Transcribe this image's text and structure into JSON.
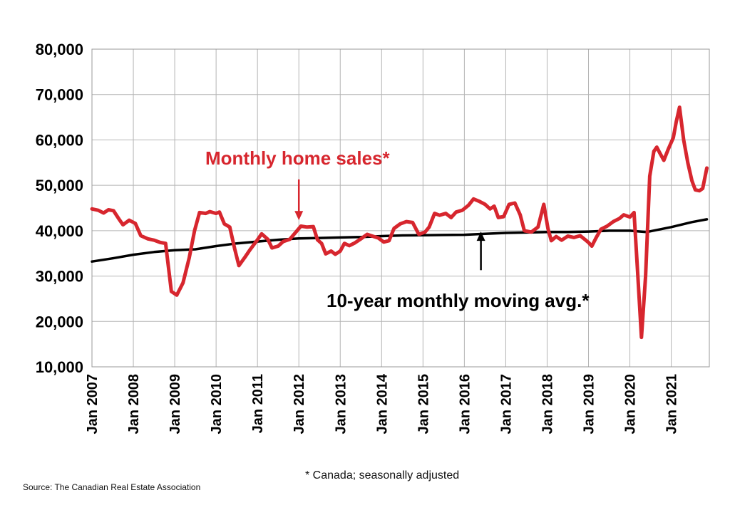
{
  "chart_data": {
    "type": "line",
    "title": "",
    "xlabel": "",
    "ylabel": "",
    "ylim": [
      10000,
      80000
    ],
    "yticks": [
      10000,
      20000,
      30000,
      40000,
      50000,
      60000,
      70000,
      80000
    ],
    "ytick_labels": [
      "10,000",
      "20,000",
      "30,000",
      "40,000",
      "50,000",
      "60,000",
      "70,000",
      "80,000"
    ],
    "xlim": [
      2007.0,
      2021.92
    ],
    "xticks": [
      2007,
      2008,
      2009,
      2010,
      2011,
      2012,
      2013,
      2014,
      2015,
      2016,
      2017,
      2018,
      2019,
      2020,
      2021
    ],
    "xtick_labels": [
      "Jan 2007",
      "Jan 2008",
      "Jan 2009",
      "Jan 2010",
      "Jan 2011",
      "Jan 2012",
      "Jan 2013",
      "Jan 2014",
      "Jan 2015",
      "Jan 2016",
      "Jan 2017",
      "Jan 2018",
      "Jan 2019",
      "Jan 2020",
      "Jan 2021"
    ],
    "grid": true,
    "series": [
      {
        "name": "Monthly home sales*",
        "color": "#d7262e",
        "points": [
          [
            2007.0,
            44800
          ],
          [
            2007.15,
            44500
          ],
          [
            2007.28,
            43900
          ],
          [
            2007.4,
            44600
          ],
          [
            2007.52,
            44400
          ],
          [
            2007.65,
            42600
          ],
          [
            2007.75,
            41300
          ],
          [
            2007.9,
            42300
          ],
          [
            2008.05,
            41600
          ],
          [
            2008.18,
            38900
          ],
          [
            2008.35,
            38200
          ],
          [
            2008.5,
            37900
          ],
          [
            2008.65,
            37400
          ],
          [
            2008.78,
            37200
          ],
          [
            2008.92,
            26600
          ],
          [
            2009.05,
            25800
          ],
          [
            2009.2,
            28500
          ],
          [
            2009.35,
            34000
          ],
          [
            2009.48,
            40000
          ],
          [
            2009.6,
            44000
          ],
          [
            2009.75,
            43800
          ],
          [
            2009.85,
            44200
          ],
          [
            2010.0,
            43800
          ],
          [
            2010.08,
            44100
          ],
          [
            2010.2,
            41500
          ],
          [
            2010.33,
            40800
          ],
          [
            2010.45,
            36000
          ],
          [
            2010.55,
            32300
          ],
          [
            2010.7,
            34200
          ],
          [
            2010.82,
            35800
          ],
          [
            2011.0,
            38000
          ],
          [
            2011.1,
            39300
          ],
          [
            2011.25,
            38100
          ],
          [
            2011.35,
            36200
          ],
          [
            2011.5,
            36600
          ],
          [
            2011.62,
            37600
          ],
          [
            2011.78,
            38100
          ],
          [
            2011.92,
            39600
          ],
          [
            2012.05,
            41000
          ],
          [
            2012.2,
            40800
          ],
          [
            2012.35,
            40900
          ],
          [
            2012.45,
            38000
          ],
          [
            2012.55,
            37200
          ],
          [
            2012.65,
            34900
          ],
          [
            2012.78,
            35500
          ],
          [
            2012.88,
            34800
          ],
          [
            2013.0,
            35500
          ],
          [
            2013.1,
            37200
          ],
          [
            2013.22,
            36700
          ],
          [
            2013.35,
            37300
          ],
          [
            2013.5,
            38200
          ],
          [
            2013.65,
            39200
          ],
          [
            2013.78,
            38800
          ],
          [
            2013.92,
            38400
          ],
          [
            2014.05,
            37500
          ],
          [
            2014.18,
            37800
          ],
          [
            2014.3,
            40500
          ],
          [
            2014.45,
            41500
          ],
          [
            2014.6,
            42000
          ],
          [
            2014.75,
            41800
          ],
          [
            2014.9,
            39200
          ],
          [
            2015.05,
            39700
          ],
          [
            2015.15,
            40800
          ],
          [
            2015.28,
            43800
          ],
          [
            2015.4,
            43400
          ],
          [
            2015.55,
            43800
          ],
          [
            2015.68,
            42900
          ],
          [
            2015.8,
            44100
          ],
          [
            2015.95,
            44500
          ],
          [
            2016.1,
            45600
          ],
          [
            2016.22,
            47000
          ],
          [
            2016.35,
            46500
          ],
          [
            2016.5,
            45800
          ],
          [
            2016.62,
            44800
          ],
          [
            2016.72,
            45400
          ],
          [
            2016.82,
            42900
          ],
          [
            2016.95,
            43100
          ],
          [
            2017.08,
            45800
          ],
          [
            2017.22,
            46100
          ],
          [
            2017.35,
            43500
          ],
          [
            2017.45,
            40000
          ],
          [
            2017.62,
            39700
          ],
          [
            2017.78,
            40800
          ],
          [
            2017.92,
            45800
          ],
          [
            2018.02,
            40500
          ],
          [
            2018.1,
            37800
          ],
          [
            2018.22,
            38700
          ],
          [
            2018.35,
            37900
          ],
          [
            2018.5,
            38800
          ],
          [
            2018.65,
            38500
          ],
          [
            2018.8,
            38900
          ],
          [
            2018.92,
            38000
          ],
          [
            2019.0,
            37400
          ],
          [
            2019.08,
            36600
          ],
          [
            2019.18,
            38400
          ],
          [
            2019.3,
            40300
          ],
          [
            2019.45,
            41000
          ],
          [
            2019.6,
            42000
          ],
          [
            2019.75,
            42700
          ],
          [
            2019.85,
            43500
          ],
          [
            2020.0,
            43000
          ],
          [
            2020.1,
            44000
          ],
          [
            2020.18,
            32000
          ],
          [
            2020.28,
            16500
          ],
          [
            2020.38,
            30000
          ],
          [
            2020.48,
            52000
          ],
          [
            2020.58,
            57500
          ],
          [
            2020.65,
            58400
          ],
          [
            2020.72,
            57200
          ],
          [
            2020.82,
            55500
          ],
          [
            2020.92,
            57800
          ],
          [
            2021.05,
            60500
          ],
          [
            2021.12,
            64000
          ],
          [
            2021.2,
            67200
          ],
          [
            2021.3,
            60000
          ],
          [
            2021.4,
            55000
          ],
          [
            2021.5,
            51000
          ],
          [
            2021.58,
            49000
          ],
          [
            2021.68,
            48800
          ],
          [
            2021.76,
            49300
          ],
          [
            2021.86,
            53800
          ]
        ]
      },
      {
        "name": "10-year monthly moving avg.*",
        "color": "#000000",
        "points": [
          [
            2007.0,
            33200
          ],
          [
            2007.5,
            33900
          ],
          [
            2008.0,
            34700
          ],
          [
            2008.5,
            35300
          ],
          [
            2009.0,
            35700
          ],
          [
            2009.5,
            35900
          ],
          [
            2010.0,
            36600
          ],
          [
            2010.5,
            37200
          ],
          [
            2011.0,
            37600
          ],
          [
            2011.5,
            38000
          ],
          [
            2012.0,
            38300
          ],
          [
            2012.5,
            38400
          ],
          [
            2013.0,
            38500
          ],
          [
            2013.5,
            38600
          ],
          [
            2014.0,
            38800
          ],
          [
            2014.5,
            38950
          ],
          [
            2015.0,
            39000
          ],
          [
            2015.5,
            39050
          ],
          [
            2016.0,
            39100
          ],
          [
            2016.5,
            39300
          ],
          [
            2017.0,
            39500
          ],
          [
            2017.5,
            39600
          ],
          [
            2018.0,
            39700
          ],
          [
            2018.5,
            39700
          ],
          [
            2019.0,
            39800
          ],
          [
            2019.5,
            40000
          ],
          [
            2020.0,
            40000
          ],
          [
            2020.4,
            39700
          ],
          [
            2021.0,
            40800
          ],
          [
            2021.5,
            41900
          ],
          [
            2021.86,
            42500
          ]
        ]
      }
    ],
    "annotations": [
      {
        "text": "Monthly home sales*",
        "color": "#d7262e",
        "arrow_from": [
          2012.0,
          51300
        ],
        "arrow_to": [
          2012.0,
          42300
        ]
      },
      {
        "text": "10-year monthly moving avg.*",
        "color": "#000000",
        "arrow_from": [
          2016.4,
          31300
        ],
        "arrow_to": [
          2016.4,
          39800
        ]
      }
    ],
    "footnote": "* Canada; seasonally adjusted",
    "source": "Source: The Canadian Real Estate Association"
  }
}
